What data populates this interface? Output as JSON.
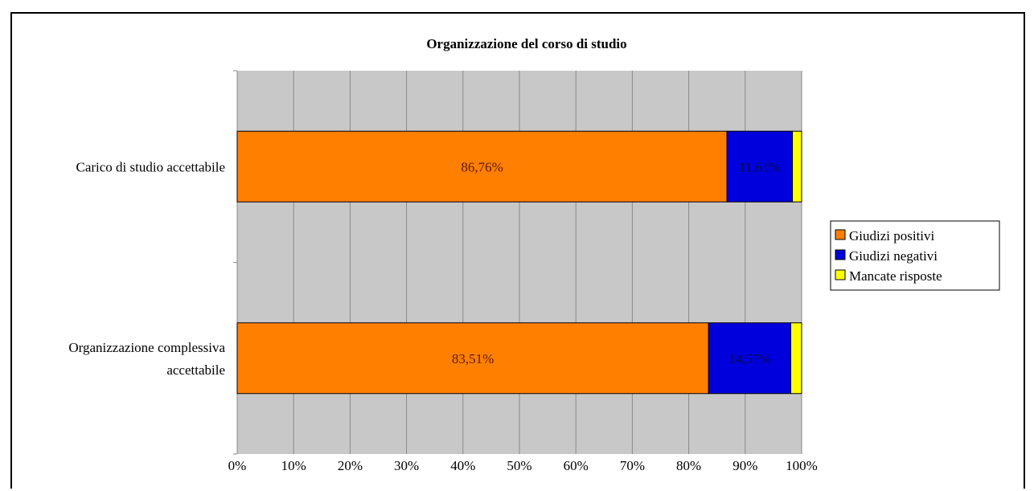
{
  "chart_data": {
    "type": "bar",
    "orientation": "horizontal",
    "stacked": "percent",
    "title": "Organizzazione del corso di studio",
    "categories": [
      "Carico di studio accettabile",
      "Organizzazione complessiva accettabile"
    ],
    "category_lines": [
      [
        "Carico di studio accettabile"
      ],
      [
        "Organizzazione complessiva",
        "accettabile"
      ]
    ],
    "series": [
      {
        "name": "Giudizi positivi",
        "color": "#ff7f00",
        "values": [
          86.76,
          83.51
        ],
        "labels": [
          "86,76%",
          "83,51%"
        ]
      },
      {
        "name": "Giudizi negativi",
        "color": "#0000dd",
        "values": [
          11.61,
          14.57
        ],
        "labels": [
          "11,61%",
          "14,57%"
        ]
      },
      {
        "name": "Mancate risposte",
        "color": "#ffff00",
        "values": [
          1.63,
          1.92
        ],
        "labels": [
          "",
          ""
        ]
      }
    ],
    "x_ticks": [
      "0%",
      "10%",
      "20%",
      "30%",
      "40%",
      "50%",
      "60%",
      "70%",
      "80%",
      "90%",
      "100%"
    ],
    "xlim": [
      0,
      100
    ],
    "grid": true,
    "plot_background": "#c8c8c8",
    "legend_position": "right"
  }
}
